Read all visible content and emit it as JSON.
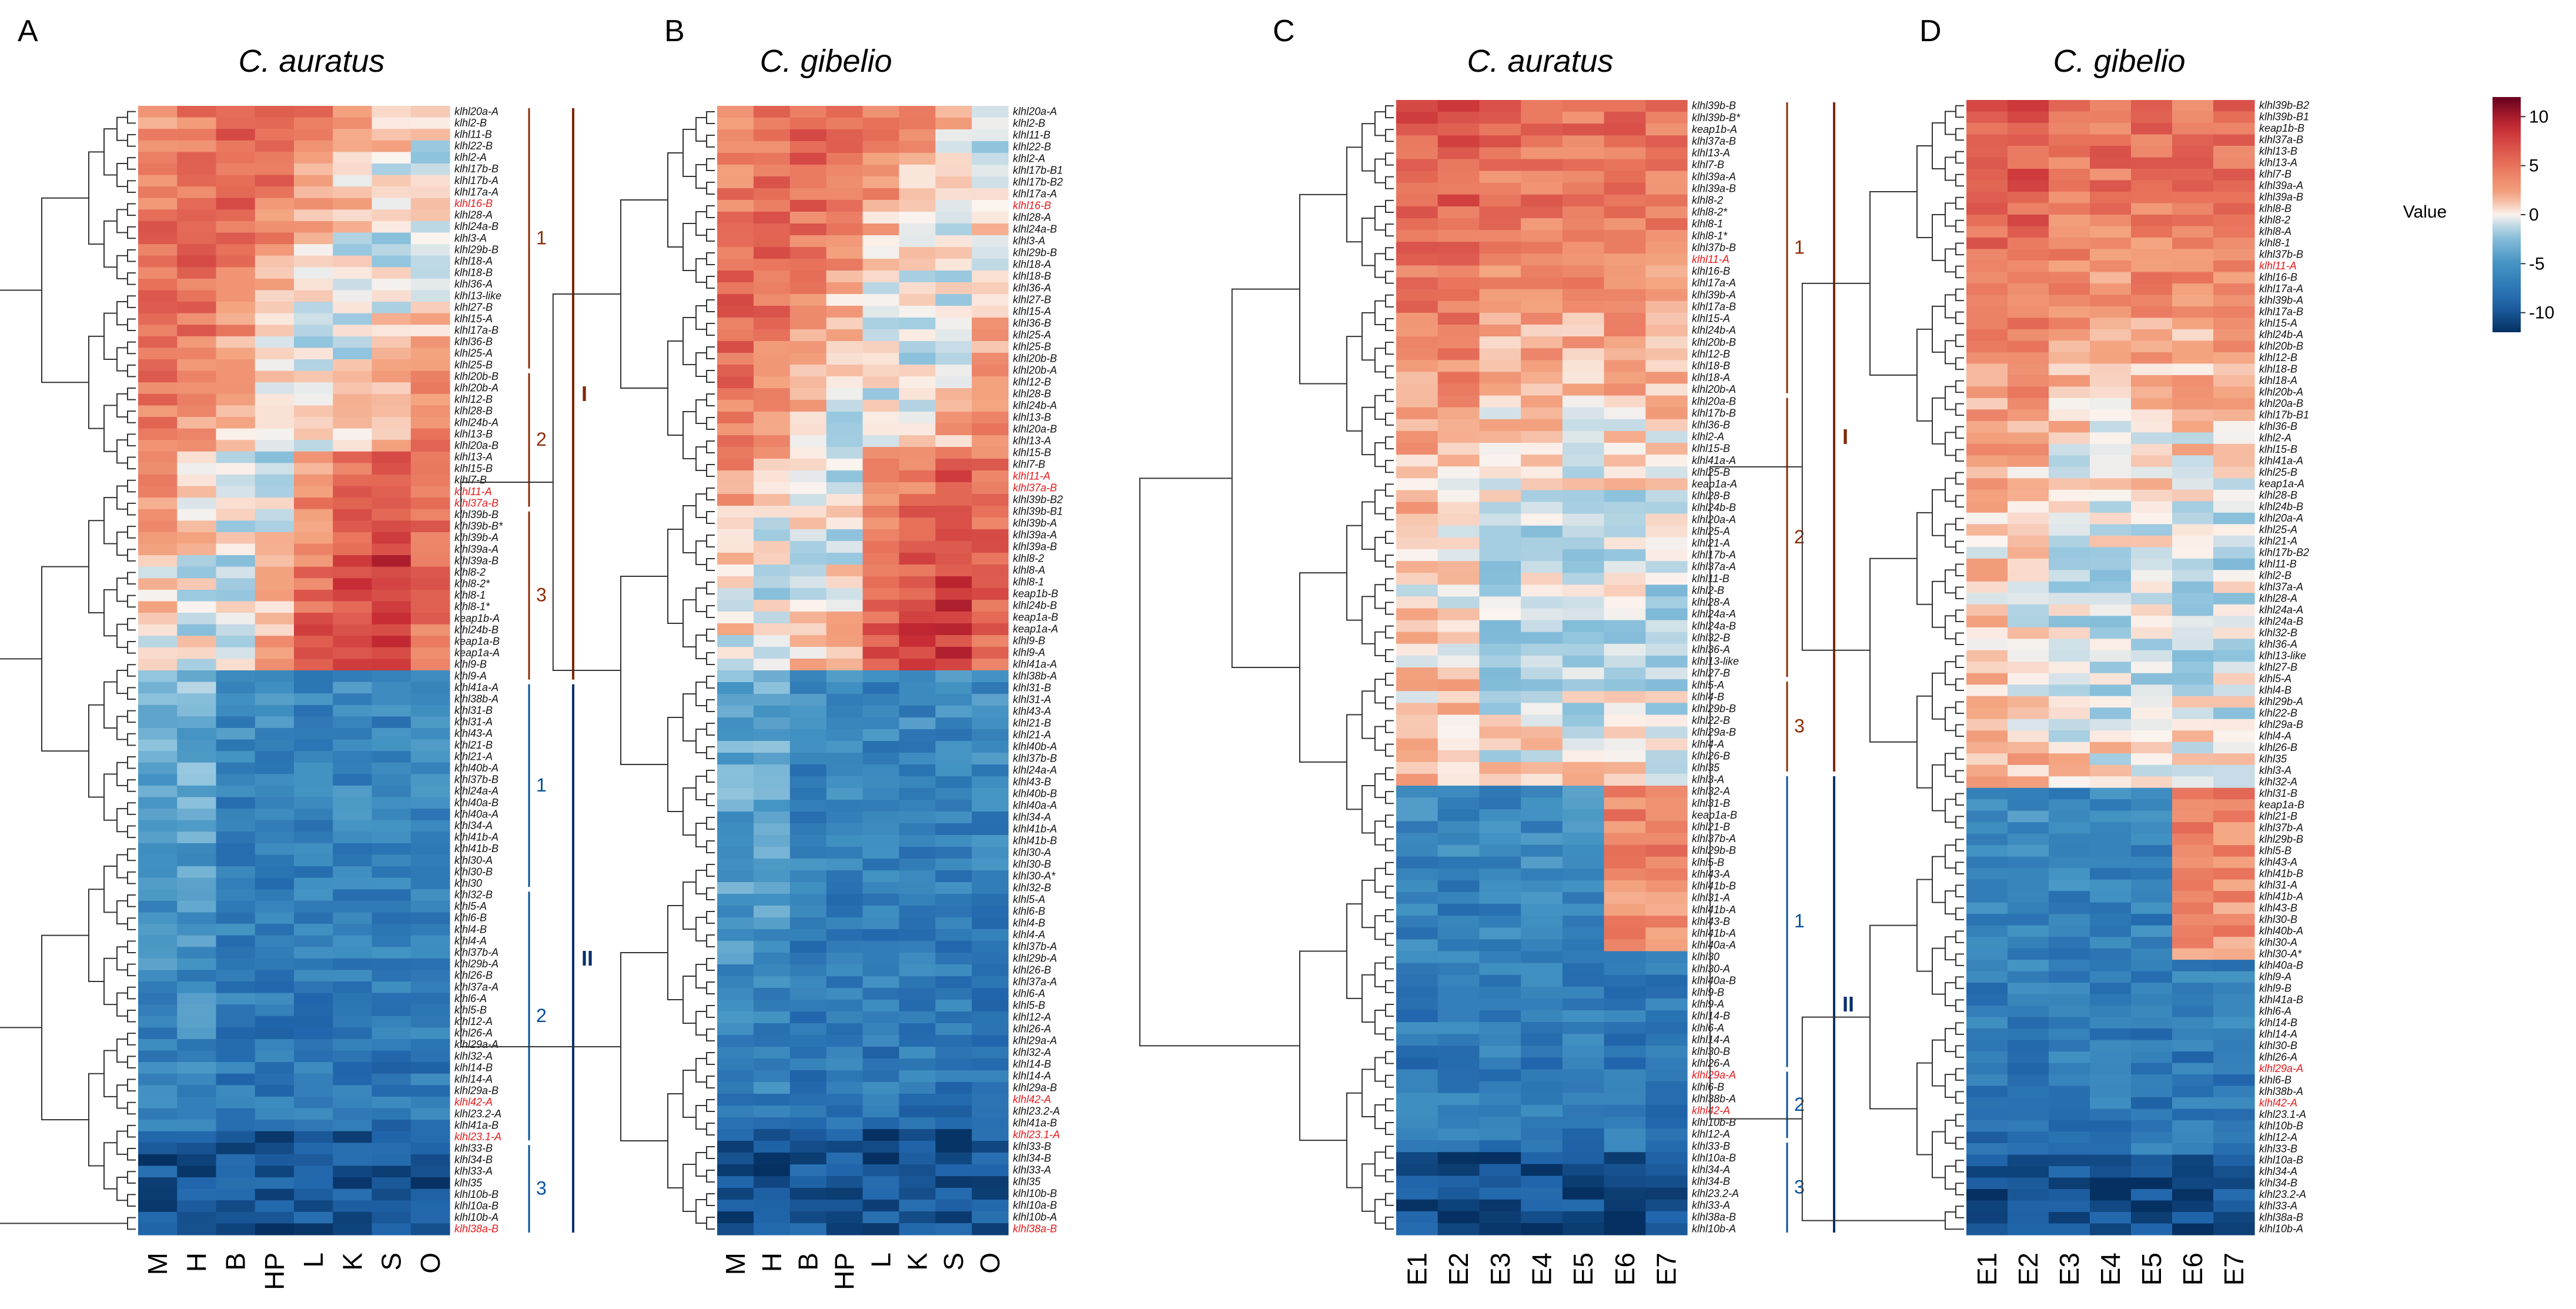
{
  "legend": {
    "title": "Value",
    "ticks": [
      10,
      5,
      0,
      -5,
      -10
    ],
    "range": [
      -12,
      12
    ]
  },
  "colors": {
    "high": "#67001f",
    "mid": "#fbf3ee",
    "low": "#053061",
    "red_label": "#e41a1c",
    "major1": "#7f2704",
    "major2": "#08306b",
    "minor1": "#8c2d04",
    "minor2": "#08519c"
  },
  "panels": [
    {
      "label": "A",
      "title": "C. auratus",
      "columns": [
        "M",
        "H",
        "B",
        "HP",
        "L",
        "K",
        "S",
        "O"
      ],
      "rows": [
        "klhl20a-A",
        "klhl2-B",
        "klhl11-B",
        "klhl22-B",
        "klhl2-A",
        "klhl17b-B",
        "klhl17b-A",
        "klhl17a-A",
        "klhl16-B",
        "klhl28-A",
        "klhl24a-B",
        "klhl3-A",
        "klhl29b-B",
        "klhl18-A",
        "klhl18-B",
        "klhl36-A",
        "klhl13-like",
        "klhl27-B",
        "klhl15-A",
        "klhl17a-B",
        "klhl36-B",
        "klhl25-A",
        "klhl25-B",
        "klhl20b-B",
        "klhl20b-A",
        "klhl12-B",
        "klhl28-B",
        "klhl24b-A",
        "klhl13-B",
        "klhl20a-B",
        "klhl13-A",
        "klhl15-B",
        "klhl7-B",
        "klhl11-A",
        "klhl37a-B",
        "klhl39b-B",
        "klhl39b-B*",
        "klhl39b-A",
        "klhl39a-A",
        "klhl39a-B",
        "klhl8-2",
        "klhl8-2*",
        "klhl8-1",
        "klhl8-1*",
        "keap1b-A",
        "klhl24b-B",
        "keap1a-B",
        "keap1a-A",
        "klhl9-B",
        "klhl9-A",
        "klhl41a-A",
        "klhl38b-A",
        "klhl31-B",
        "klhl31-A",
        "klhl43-A",
        "klhl21-B",
        "klhl21-A",
        "klhl40b-A",
        "klhl37b-B",
        "klhl24a-A",
        "klhl40a-B",
        "klhl40a-A",
        "klhl34-A",
        "klhl41b-A",
        "klhl41b-B",
        "klhl30-A",
        "klhl30-B",
        "klhl30",
        "klhl32-B",
        "klhl5-A",
        "klhl6-B",
        "klhl4-B",
        "klhl4-A",
        "klhl37b-A",
        "klhl29b-A",
        "klhl26-B",
        "klhl37a-A",
        "klhl6-A",
        "klhl5-B",
        "klhl12-A",
        "klhl26-A",
        "klhl29a-A",
        "klhl32-A",
        "klhl14-B",
        "klhl14-A",
        "klhl29a-B",
        "klhl42-A",
        "klhl23.2-A",
        "klhl41a-B",
        "klhl23.1-A",
        "klhl33-B",
        "klhl34-B",
        "klhl33-A",
        "klhl35",
        "klhl10b-B",
        "klhl10a-B",
        "klhl10b-A",
        "klhl38a-B"
      ],
      "red_rows": [
        "klhl16-B",
        "klhl11-A",
        "klhl37a-B",
        "klhl42-A",
        "klhl23.1-A",
        "klhl38a-B"
      ],
      "minor_groups": [
        {
          "label": "1",
          "start": 0,
          "end": 22
        },
        {
          "label": "2",
          "start": 23,
          "end": 34
        },
        {
          "label": "3",
          "start": 35,
          "end": 49
        },
        {
          "label": "1",
          "start": 50,
          "end": 67
        },
        {
          "label": "2",
          "start": 68,
          "end": 89
        },
        {
          "label": "3",
          "start": 90,
          "end": 97
        }
      ],
      "major_groups": [
        {
          "label": "I",
          "start": 0,
          "end": 49
        },
        {
          "label": "II",
          "start": 50,
          "end": 97
        }
      ]
    },
    {
      "label": "B",
      "title": "C. gibelio",
      "columns": [
        "M",
        "H",
        "B",
        "HP",
        "L",
        "K",
        "S",
        "O"
      ],
      "rows": [
        "klhl20a-A",
        "klhl2-B",
        "klhl11-B",
        "klhl22-B",
        "klhl2-A",
        "klhl17b-B1",
        "klhl17b-B2",
        "klhl17a-A",
        "klhl16-B",
        "klhl28-A",
        "klhl24a-B",
        "klhl3-A",
        "klhl29b-B",
        "klhl18-A",
        "klhl18-B",
        "klhl36-A",
        "klhl27-B",
        "klhl15-A",
        "klhl36-B",
        "klhl25-A",
        "klhl25-B",
        "klhl20b-B",
        "klhl20b-A",
        "klhl12-B",
        "klhl28-B",
        "klhl24b-A",
        "klhl13-B",
        "klhl20a-B",
        "klhl13-A",
        "klhl15-B",
        "klhl7-B",
        "klhl11-A",
        "klhl37a-B",
        "klhl39b-B2",
        "klhl39b-B1",
        "klhl39b-A",
        "klhl39a-A",
        "klhl39a-B",
        "klhl8-2",
        "klhl8-A",
        "klhl8-1",
        "keap1b-B",
        "klhl24b-B",
        "keap1a-B",
        "keap1a-A",
        "klhl9-B",
        "klhl9-A",
        "klhl41a-A",
        "klhl38b-A",
        "klhl31-B",
        "klhl31-A",
        "klhl43-A",
        "klhl21-B",
        "klhl21-A",
        "klhl40b-A",
        "klhl37b-B",
        "klhl24a-A",
        "klhl43-B",
        "klhl40b-B",
        "klhl40a-A",
        "klhl34-A",
        "klhl41b-A",
        "klhl41b-B",
        "klhl30-A",
        "klhl30-B",
        "klhl30-A*",
        "klhl32-B",
        "klhl5-A",
        "klhl6-B",
        "klhl4-B",
        "klhl4-A",
        "klhl37b-A",
        "klhl29b-A",
        "klhl26-B",
        "klhl37a-A",
        "klhl6-A",
        "klhl5-B",
        "klhl12-A",
        "klhl26-A",
        "klhl29a-A",
        "klhl32-A",
        "klhl14-B",
        "klhl14-A",
        "klhl29a-B",
        "klhl42-A",
        "klhl23.2-A",
        "klhl41a-B",
        "klhl23.1-A",
        "klhl33-B",
        "klhl34-B",
        "klhl33-A",
        "klhl35",
        "klhl10b-B",
        "klhl10a-B",
        "klhl10b-A",
        "klhl38a-B"
      ],
      "red_rows": [
        "klhl16-B",
        "klhl11-A",
        "klhl37a-B",
        "klhl42-A",
        "klhl23.1-A",
        "klhl38a-B"
      ]
    },
    {
      "label": "C",
      "title": "C. auratus",
      "columns": [
        "E1",
        "E2",
        "E3",
        "E4",
        "E5",
        "E6",
        "E7"
      ],
      "rows": [
        "klhl39b-B",
        "klhl39b-B*",
        "keap1b-A",
        "klhl37a-B",
        "klhl13-A",
        "klhl7-B",
        "klhl39a-A",
        "klhl39a-B",
        "klhl8-2",
        "klhl8-2*",
        "klhl8-1",
        "klhl8-1*",
        "klhl37b-B",
        "klhl11-A",
        "klhl16-B",
        "klhl17a-A",
        "klhl39b-A",
        "klhl17a-B",
        "klhl15-A",
        "klhl24b-A",
        "klhl20b-B",
        "klhl12-B",
        "klhl18-B",
        "klhl18-A",
        "klhl20b-A",
        "klhl20a-B",
        "klhl17b-B",
        "klhl36-B",
        "klhl2-A",
        "klhl15-B",
        "klhl41a-A",
        "klhl25-B",
        "keap1a-A",
        "klhl28-B",
        "klhl24b-B",
        "klhl20a-A",
        "klhl25-A",
        "klhl21-A",
        "klhl17b-A",
        "klhl37a-A",
        "klhl11-B",
        "klhl2-B",
        "klhl28-A",
        "klhl24a-A",
        "klhl24a-B",
        "klhl32-B",
        "klhl36-A",
        "klhl13-like",
        "klhl27-B",
        "klhl5-A",
        "klhl4-B",
        "klhl29b-B",
        "klhl22-B",
        "klhl29a-B",
        "klhl4-A",
        "klhl26-B",
        "klhl35",
        "klhl3-A",
        "klhl32-A",
        "klhl31-B",
        "keap1a-B",
        "klhl21-B",
        "klhl37b-A",
        "klhl29b-B",
        "klhl5-B",
        "klhl43-A",
        "klhl41b-B",
        "klhl31-A",
        "klhl41b-A",
        "klhl43-B",
        "klhl41b-A",
        "klhl40a-A",
        "klhl30",
        "klhl30-A",
        "klhl40a-B",
        "klhl9-B",
        "klhl9-A",
        "klhl14-B",
        "klhl6-A",
        "klhl14-A",
        "klhl30-B",
        "klhl26-A",
        "klhl29a-A",
        "klhl6-B",
        "klhl38b-A",
        "klhl42-A",
        "klhl10b-B",
        "klhl12-A",
        "klhl33-B",
        "klhl10a-B",
        "klhl34-A",
        "klhl34-B",
        "klhl23.2-A",
        "klhl33-A",
        "klhl38a-B",
        "klhl10b-A"
      ],
      "red_rows": [
        "klhl11-A",
        "klhl29a-A",
        "klhl42-A"
      ],
      "minor_groups": [
        {
          "label": "1",
          "start": 0,
          "end": 24
        },
        {
          "label": "2",
          "start": 25,
          "end": 48
        },
        {
          "label": "3",
          "start": 49,
          "end": 56
        },
        {
          "label": "1",
          "start": 57,
          "end": 81
        },
        {
          "label": "2",
          "start": 82,
          "end": 87
        },
        {
          "label": "3",
          "start": 88,
          "end": 95
        }
      ],
      "major_groups": [
        {
          "label": "I",
          "start": 0,
          "end": 56
        },
        {
          "label": "II",
          "start": 57,
          "end": 95
        }
      ]
    },
    {
      "label": "D",
      "title": "C. gibelio",
      "columns": [
        "E1",
        "E2",
        "E3",
        "E4",
        "E5",
        "E6",
        "E7"
      ],
      "rows": [
        "klhl39b-B2",
        "klhl39b-B1",
        "keap1b-B",
        "klhl37a-B",
        "klhl13-B",
        "klhl13-A",
        "klhl7-B",
        "klhl39a-A",
        "klhl39a-B",
        "klhl8-B",
        "klhl8-2",
        "klhl8-A",
        "klhl8-1",
        "klhl37b-B",
        "klhl11-A",
        "klhl16-B",
        "klhl17a-A",
        "klhl39b-A",
        "klhl17a-B",
        "klhl15-A",
        "klhl24b-A",
        "klhl20b-B",
        "klhl12-B",
        "klhl18-B",
        "klhl18-A",
        "klhl20b-A",
        "klhl20a-B",
        "klhl17b-B1",
        "klhl36-B",
        "klhl2-A",
        "klhl15-B",
        "klhl41a-A",
        "klhl25-B",
        "keap1a-A",
        "klhl28-B",
        "klhl24b-B",
        "klhl20a-A",
        "klhl25-A",
        "klhl21-A",
        "klhl17b-B2",
        "klhl11-B",
        "klhl2-B",
        "klhl37a-A",
        "klhl28-A",
        "klhl24a-A",
        "klhl24a-B",
        "klhl32-B",
        "klhl36-A",
        "klhl13-like",
        "klhl27-B",
        "klhl5-A",
        "klhl4-B",
        "klhl29b-A",
        "klhl22-B",
        "klhl29a-B",
        "klhl4-A",
        "klhl26-B",
        "klhl35",
        "klhl3-A",
        "klhl32-A",
        "klhl31-B",
        "keap1a-B",
        "klhl21-B",
        "klhl37b-A",
        "klhl29b-B",
        "klhl5-B",
        "klhl43-A",
        "klhl41b-B",
        "klhl31-A",
        "klhl41b-A",
        "klhl43-B",
        "klhl30-B",
        "klhl40b-A",
        "klhl30-A",
        "klhl30-A*",
        "klhl40a-B",
        "klhl9-A",
        "klhl9-B",
        "klhl41a-B",
        "klhl6-A",
        "klhl14-B",
        "klhl14-A",
        "klhl30-B",
        "klhl26-A",
        "klhl29a-A",
        "klhl6-B",
        "klhl38b-A",
        "klhl42-A",
        "klhl23.1-A",
        "klhl10b-B",
        "klhl12-A",
        "klhl33-B",
        "klhl10a-B",
        "klhl34-A",
        "klhl34-B",
        "klhl23.2-A",
        "klhl33-A",
        "klhl38a-B",
        "klhl10b-A"
      ],
      "red_rows": [
        "klhl11-A",
        "klhl29a-A",
        "klhl42-A"
      ]
    }
  ],
  "chart_data": [
    {
      "type": "heatmap",
      "panel": "A",
      "title": "C. auratus",
      "xlabel": "",
      "ylabel": "",
      "color_range": [
        -12,
        12
      ],
      "note": "tissue expression; rows listed in panels[0].rows"
    },
    {
      "type": "heatmap",
      "panel": "B",
      "title": "C. gibelio",
      "xlabel": "",
      "ylabel": "",
      "color_range": [
        -12,
        12
      ],
      "note": "tissue expression; rows listed in panels[1].rows"
    },
    {
      "type": "heatmap",
      "panel": "C",
      "title": "C. auratus",
      "xlabel": "",
      "ylabel": "",
      "color_range": [
        -12,
        12
      ],
      "note": "embryonic stages E1-E7; rows listed in panels[2].rows"
    },
    {
      "type": "heatmap",
      "panel": "D",
      "title": "C. gibelio",
      "xlabel": "",
      "ylabel": "",
      "color_range": [
        -12,
        12
      ],
      "note": "embryonic stages E1-E7; rows listed in panels[3].rows"
    }
  ]
}
